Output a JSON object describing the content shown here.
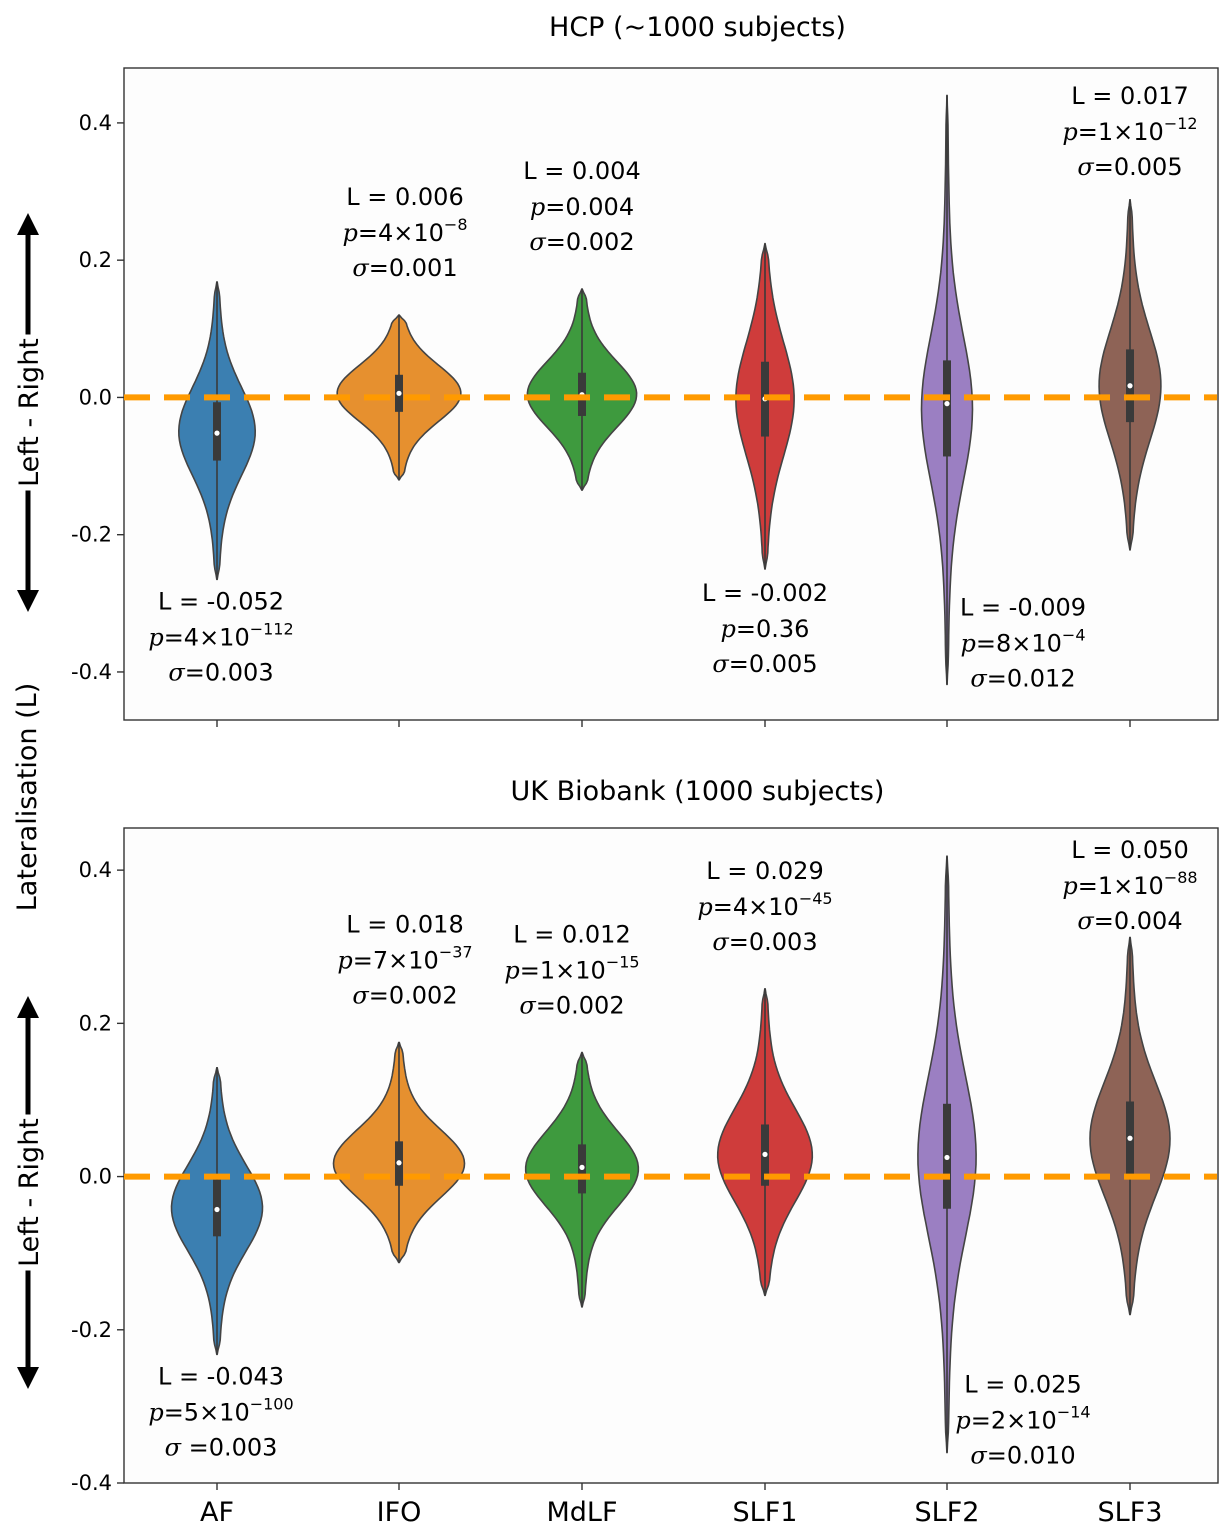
{
  "figure": {
    "ylabel": "Lateralisation (L)",
    "arrow_label": "Left - Right",
    "categories": [
      "AF",
      "IFO",
      "MdLF",
      "SLF1",
      "SLF2",
      "SLF3"
    ],
    "colors": {
      "AF": "#3b7fb1",
      "IFO": "#e6902f",
      "MdLF": "#3e9a3e",
      "SLF1": "#cf3c3b",
      "SLF2": "#9b7fc2",
      "SLF3": "#8e6356",
      "reference_line": "#ff9a00",
      "plot_background": "#fdfdfd"
    }
  },
  "chart_data": [
    {
      "type": "violin",
      "title": "HCP (~1000 subjects)",
      "ylim": [
        -0.47,
        0.48
      ],
      "yticks": [
        "0.4",
        "0.2",
        "0.0",
        "-0.2",
        "-0.4"
      ],
      "reference_line_y": 0.0,
      "series": [
        {
          "category": "AF",
          "median": -0.052,
          "q1": -0.092,
          "q3": -0.007,
          "min": -0.265,
          "max": 0.168,
          "width_max": 0.42,
          "annotation": {
            "L": "L = -0.052",
            "p_base": "4",
            "p_exp": "−112",
            "sigma": "0.003",
            "position": "below"
          }
        },
        {
          "category": "IFO",
          "median": 0.006,
          "q1": -0.021,
          "q3": 0.033,
          "min": -0.12,
          "max": 0.12,
          "width_max": 0.68,
          "annotation": {
            "L": "L = 0.006",
            "p_base": "4",
            "p_exp": "−8",
            "sigma": "0.001",
            "position": "above"
          }
        },
        {
          "category": "MdLF",
          "median": 0.004,
          "q1": -0.027,
          "q3": 0.036,
          "min": -0.135,
          "max": 0.158,
          "width_max": 0.6,
          "annotation": {
            "L": "L = 0.004",
            "p_text": "0.004",
            "sigma": "0.002",
            "position": "above"
          }
        },
        {
          "category": "SLF1",
          "median": -0.002,
          "q1": -0.057,
          "q3": 0.052,
          "min": -0.25,
          "max": 0.224,
          "width_max": 0.32,
          "annotation": {
            "L": "L = -0.002",
            "p_text": "0.36",
            "sigma": "0.005",
            "position": "below"
          }
        },
        {
          "category": "SLF2",
          "median": -0.009,
          "q1": -0.086,
          "q3": 0.054,
          "min": -0.418,
          "max": 0.44,
          "width_max": 0.28,
          "annotation": {
            "L": "L = -0.009",
            "p_base": "8",
            "p_exp": "−4",
            "sigma": "0.012",
            "position": "below"
          }
        },
        {
          "category": "SLF3",
          "median": 0.017,
          "q1": -0.036,
          "q3": 0.07,
          "min": -0.222,
          "max": 0.288,
          "width_max": 0.34,
          "annotation": {
            "L": "L = 0.017",
            "p_base": "1",
            "p_exp": "−12",
            "sigma": "0.005",
            "position": "above"
          }
        }
      ]
    },
    {
      "type": "violin",
      "title": "UK Biobank (1000 subjects)",
      "ylim": [
        -0.4,
        0.455
      ],
      "yticks": [
        "0.4",
        "0.2",
        "0.0",
        "-0.2",
        "-0.4"
      ],
      "reference_line_y": 0.0,
      "series": [
        {
          "category": "AF",
          "median": -0.043,
          "q1": -0.078,
          "q3": -0.004,
          "min": -0.232,
          "max": 0.142,
          "width_max": 0.5,
          "annotation": {
            "L": "L = -0.043",
            "p_base": "5",
            "p_exp": "−100",
            "sigma": " =0.003",
            "position": "below"
          }
        },
        {
          "category": "IFO",
          "median": 0.018,
          "q1": -0.012,
          "q3": 0.046,
          "min": -0.112,
          "max": 0.175,
          "width_max": 0.72,
          "annotation": {
            "L": "L = 0.018",
            "p_base": "7",
            "p_exp": "−37",
            "sigma": "0.002",
            "position": "above"
          }
        },
        {
          "category": "MdLF",
          "median": 0.012,
          "q1": -0.022,
          "q3": 0.042,
          "min": -0.17,
          "max": 0.162,
          "width_max": 0.62,
          "annotation": {
            "L": "L = 0.012",
            "p_base": "1",
            "p_exp": "−15",
            "sigma": "0.002",
            "position": "above"
          }
        },
        {
          "category": "SLF1",
          "median": 0.029,
          "q1": -0.012,
          "q3": 0.068,
          "min": -0.155,
          "max": 0.245,
          "width_max": 0.52,
          "annotation": {
            "L": "L = 0.029",
            "p_base": "4",
            "p_exp": "−45",
            "sigma": "0.003",
            "position": "above"
          }
        },
        {
          "category": "SLF2",
          "median": 0.025,
          "q1": -0.042,
          "q3": 0.095,
          "min": -0.36,
          "max": 0.418,
          "width_max": 0.32,
          "annotation": {
            "L": "L = 0.025",
            "p_base": "2",
            "p_exp": "−14",
            "sigma": "0.010",
            "position": "below"
          }
        },
        {
          "category": "SLF3",
          "median": 0.05,
          "q1": 0.0,
          "q3": 0.098,
          "min": -0.18,
          "max": 0.312,
          "width_max": 0.44,
          "annotation": {
            "L": "L = 0.050",
            "p_base": "1",
            "p_exp": "−88",
            "sigma": "0.004",
            "position": "above"
          }
        }
      ]
    }
  ]
}
